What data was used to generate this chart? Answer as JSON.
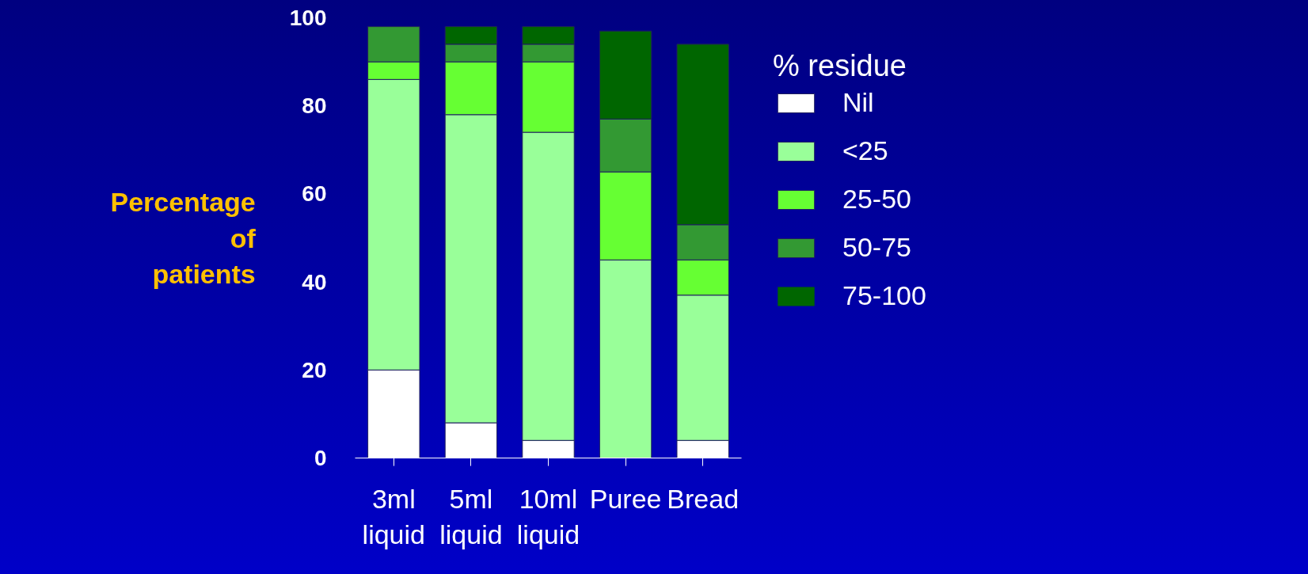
{
  "chart_data": {
    "type": "bar",
    "stacked": true,
    "ylabel": "Percentage\nof\npatients",
    "legend_title": "% residue",
    "legend": "right",
    "grid": false,
    "categories": [
      "3ml\nliquid",
      "5ml\nliquid",
      "10ml\nliquid",
      "Puree",
      "Bread"
    ],
    "ylim": [
      0,
      100
    ],
    "yticks": [
      0,
      20,
      40,
      60,
      80,
      100
    ],
    "series": [
      {
        "name": "Nil",
        "color": "#ffffff",
        "values": [
          20,
          8,
          4,
          0,
          4
        ]
      },
      {
        "name": "<25",
        "color": "#99ff99",
        "values": [
          66,
          70,
          70,
          45,
          33
        ]
      },
      {
        "name": "25-50",
        "color": "#66ff33",
        "values": [
          4,
          12,
          16,
          20,
          8
        ]
      },
      {
        "name": "50-75",
        "color": "#339933",
        "values": [
          8,
          4,
          4,
          12,
          8
        ]
      },
      {
        "name": "75-100",
        "color": "#006600",
        "values": [
          0,
          4,
          4,
          20,
          41
        ]
      }
    ]
  }
}
